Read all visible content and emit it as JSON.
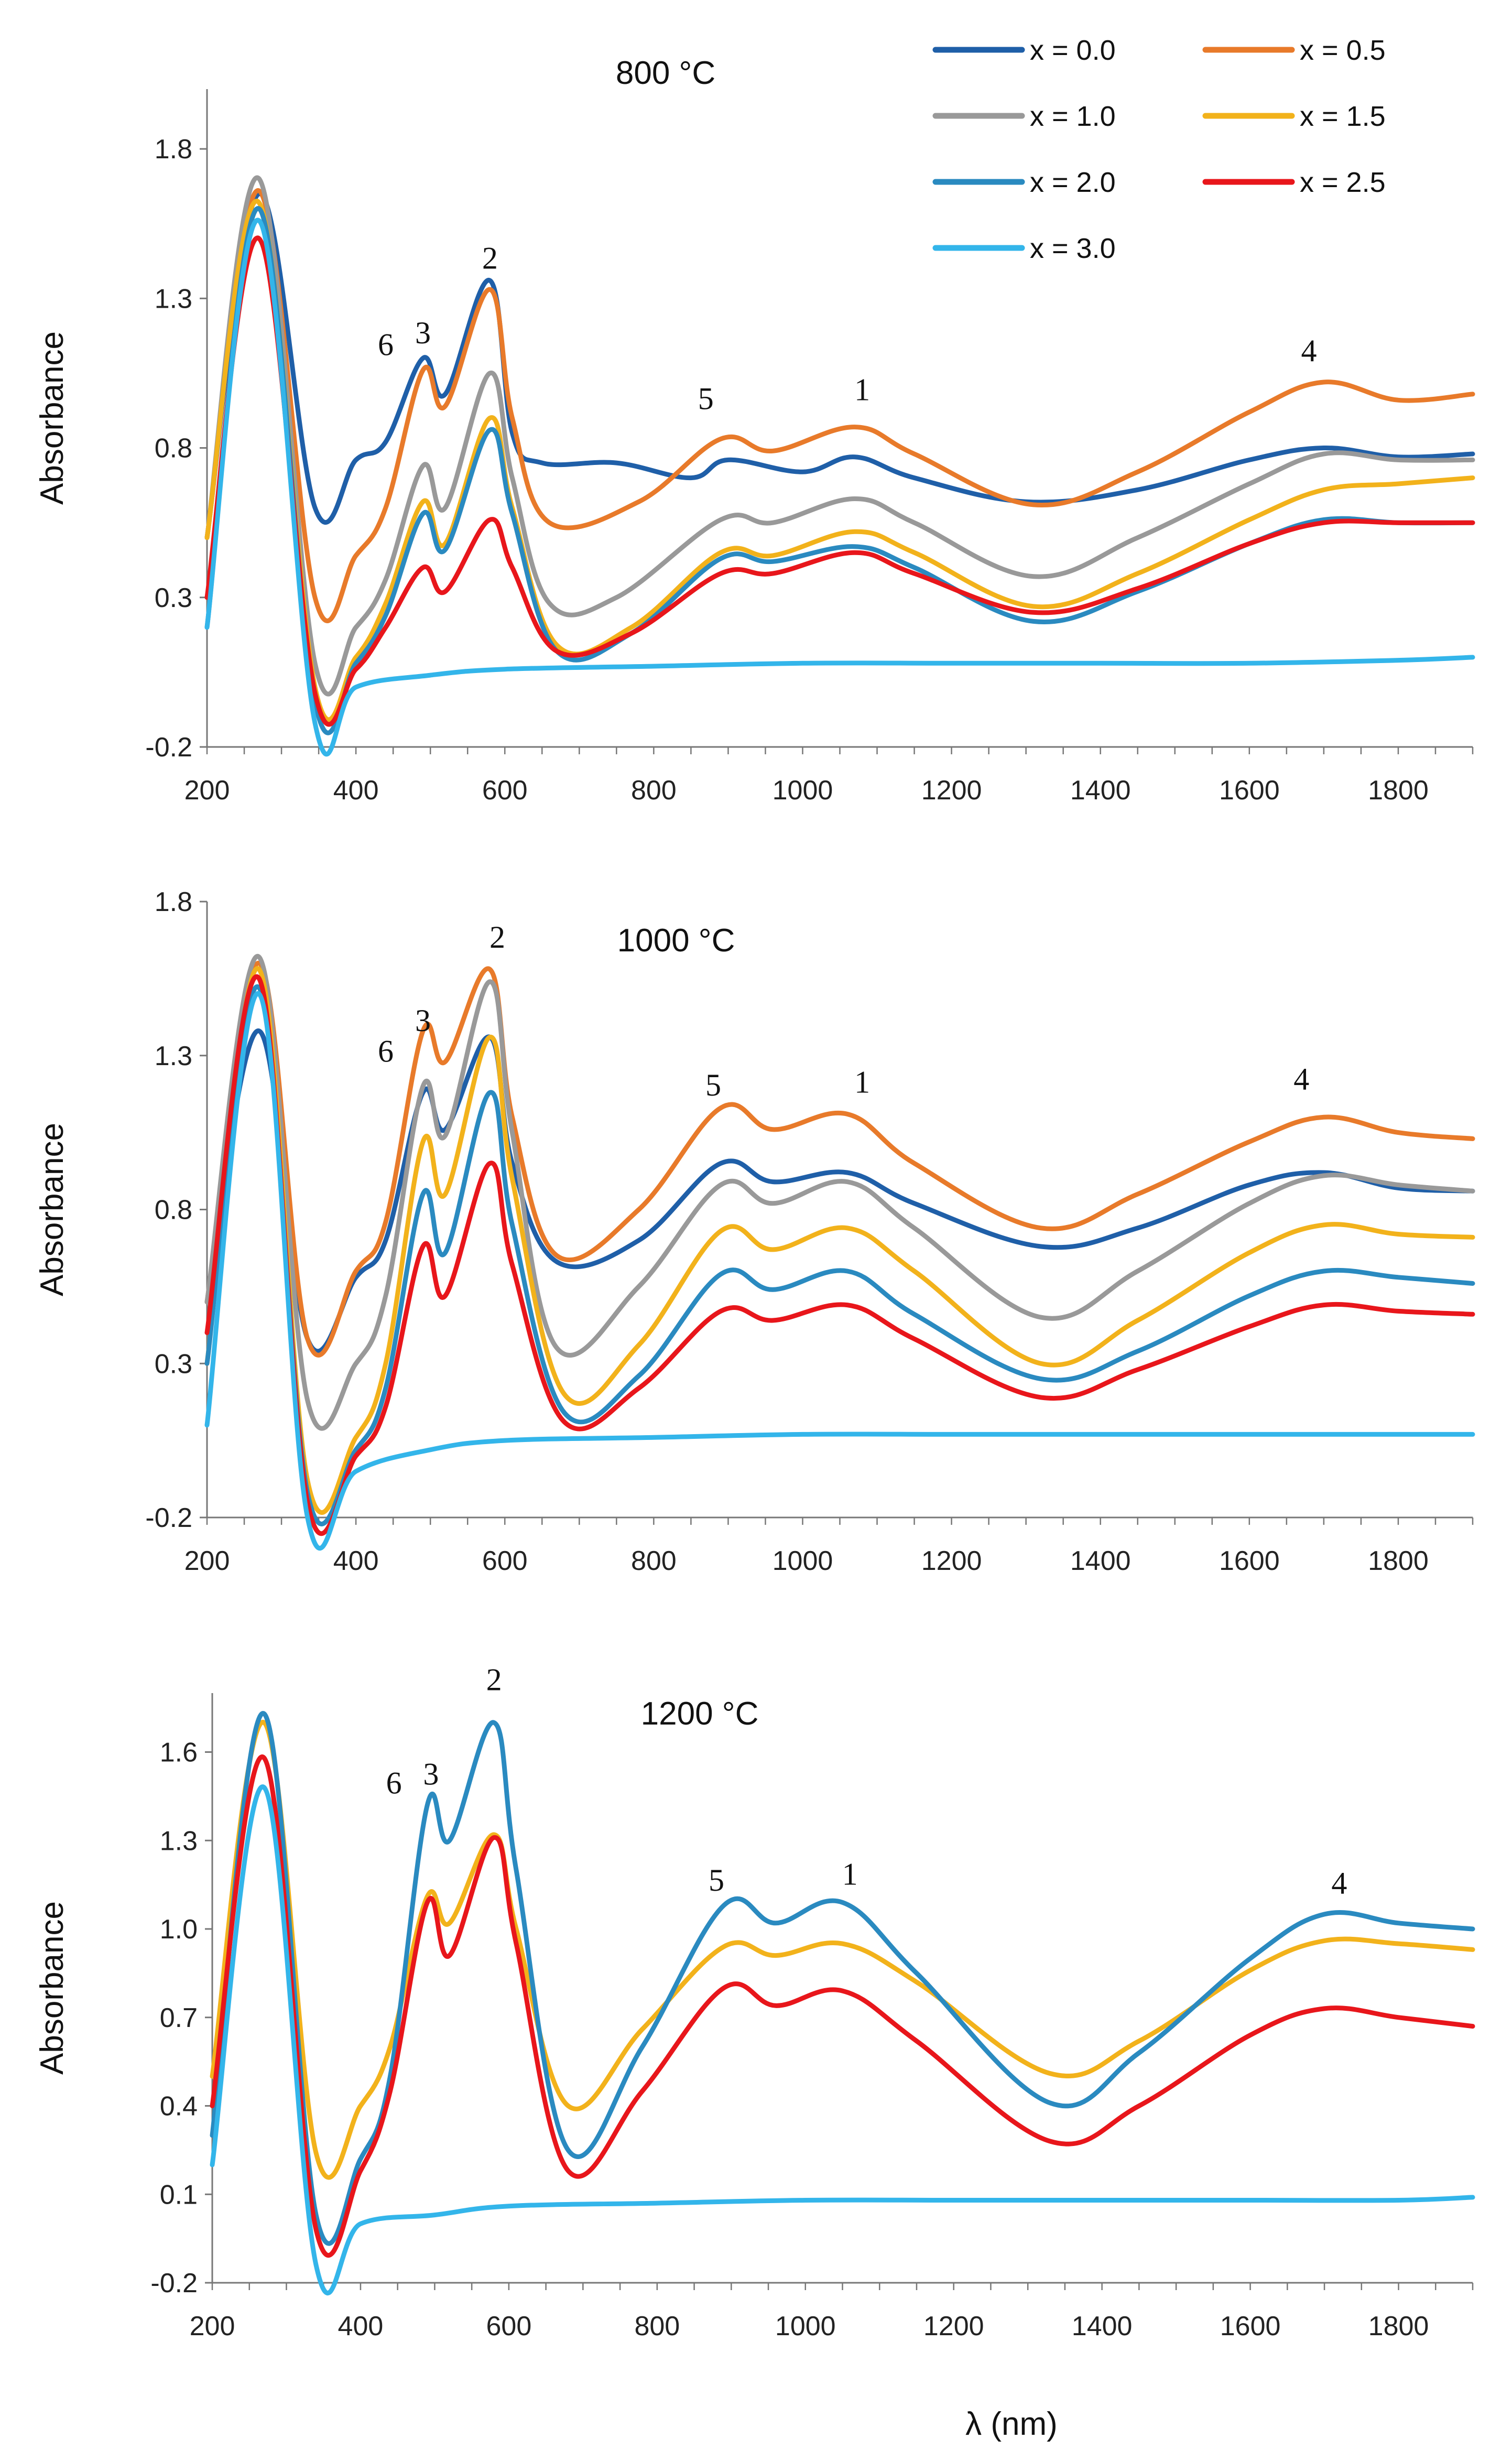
{
  "chart_data": [
    {
      "type": "line",
      "title": "800 °C",
      "xlabel": "",
      "ylabel": "Absorbance",
      "xlim": [
        200,
        1900
      ],
      "ylim": [
        -0.2,
        2.0
      ],
      "xticks": [
        200,
        400,
        600,
        800,
        1000,
        1200,
        1400,
        1600,
        1800
      ],
      "xtick_labels": [
        "200",
        "400",
        "600",
        "800",
        "1000",
        "1200",
        "1400",
        "1600",
        "1800"
      ],
      "yticks": [
        -0.2,
        0.3,
        0.8,
        1.3,
        1.8
      ],
      "ytick_labels": [
        "-0.2",
        "0.3",
        "0.8",
        "1.3",
        "1.8"
      ],
      "annotations": [
        {
          "text": "6",
          "x": 440,
          "y": 1.11
        },
        {
          "text": "3",
          "x": 490,
          "y": 1.15
        },
        {
          "text": "2",
          "x": 580,
          "y": 1.4
        },
        {
          "text": "5",
          "x": 870,
          "y": 0.93
        },
        {
          "text": "1",
          "x": 1080,
          "y": 0.96
        },
        {
          "text": "4",
          "x": 1680,
          "y": 1.09
        }
      ],
      "legend": {
        "placement": "top-right",
        "entries": [
          {
            "label": "x = 0.0",
            "color": "#1f5fa8"
          },
          {
            "label": "x = 0.5",
            "color": "#e87a2a"
          },
          {
            "label": "x = 1.0",
            "color": "#999999"
          },
          {
            "label": "x = 1.5",
            "color": "#f2b21b"
          },
          {
            "label": "x = 2.0",
            "color": "#2a8ac0"
          },
          {
            "label": "x = 2.5",
            "color": "#e8161b"
          },
          {
            "label": "x = 3.0",
            "color": "#33b5ea"
          }
        ]
      },
      "series": [
        {
          "name": "x = 0.0",
          "color": "#1f5fa8",
          "x": [
            200,
            270,
            345,
            400,
            440,
            490,
            520,
            580,
            610,
            650,
            750,
            850,
            900,
            1000,
            1070,
            1150,
            1300,
            1450,
            1600,
            1700,
            1800,
            1900
          ],
          "y": [
            0.5,
            1.65,
            0.6,
            0.76,
            0.82,
            1.1,
            0.98,
            1.36,
            0.85,
            0.75,
            0.75,
            0.7,
            0.76,
            0.72,
            0.77,
            0.7,
            0.62,
            0.66,
            0.76,
            0.8,
            0.77,
            0.78
          ]
        },
        {
          "name": "x = 0.5",
          "color": "#e87a2a",
          "x": [
            200,
            270,
            345,
            400,
            440,
            490,
            520,
            580,
            610,
            660,
            780,
            890,
            960,
            1070,
            1150,
            1310,
            1450,
            1600,
            1700,
            1800,
            1900
          ],
          "y": [
            0.5,
            1.66,
            0.3,
            0.44,
            0.6,
            1.06,
            0.94,
            1.33,
            0.9,
            0.55,
            0.62,
            0.83,
            0.79,
            0.87,
            0.78,
            0.61,
            0.72,
            0.92,
            1.02,
            0.96,
            0.98
          ]
        },
        {
          "name": "x = 1.0",
          "color": "#999999",
          "x": [
            200,
            270,
            345,
            400,
            440,
            490,
            520,
            580,
            610,
            660,
            750,
            890,
            960,
            1070,
            1150,
            1310,
            1450,
            1600,
            1700,
            1800,
            1900
          ],
          "y": [
            0.5,
            1.7,
            0.08,
            0.2,
            0.36,
            0.74,
            0.6,
            1.05,
            0.7,
            0.28,
            0.3,
            0.56,
            0.55,
            0.63,
            0.55,
            0.37,
            0.5,
            0.68,
            0.78,
            0.76,
            0.76
          ]
        },
        {
          "name": "x = 1.5",
          "color": "#f2b21b",
          "x": [
            200,
            270,
            345,
            400,
            440,
            490,
            520,
            580,
            610,
            670,
            770,
            890,
            960,
            1070,
            1150,
            1310,
            1450,
            1600,
            1700,
            1800,
            1900
          ],
          "y": [
            0.5,
            1.62,
            0.0,
            0.1,
            0.28,
            0.62,
            0.48,
            0.9,
            0.6,
            0.14,
            0.2,
            0.45,
            0.44,
            0.52,
            0.45,
            0.27,
            0.38,
            0.56,
            0.66,
            0.68,
            0.7
          ]
        },
        {
          "name": "x = 2.0",
          "color": "#2a8ac0",
          "x": [
            200,
            270,
            345,
            400,
            440,
            490,
            520,
            580,
            610,
            670,
            770,
            890,
            960,
            1070,
            1150,
            1310,
            1450,
            1600,
            1700,
            1800,
            1900
          ],
          "y": [
            0.2,
            1.6,
            -0.05,
            0.08,
            0.24,
            0.58,
            0.46,
            0.86,
            0.58,
            0.12,
            0.18,
            0.43,
            0.42,
            0.47,
            0.4,
            0.22,
            0.32,
            0.48,
            0.56,
            0.55,
            0.55
          ]
        },
        {
          "name": "x = 2.5",
          "color": "#e8161b",
          "x": [
            200,
            270,
            345,
            400,
            440,
            490,
            520,
            580,
            610,
            670,
            770,
            890,
            960,
            1070,
            1150,
            1310,
            1450,
            1600,
            1700,
            1800,
            1900
          ],
          "y": [
            0.3,
            1.5,
            -0.02,
            0.06,
            0.2,
            0.4,
            0.32,
            0.56,
            0.4,
            0.12,
            0.18,
            0.38,
            0.38,
            0.45,
            0.38,
            0.25,
            0.33,
            0.48,
            0.55,
            0.55,
            0.55
          ]
        },
        {
          "name": "x = 3.0",
          "color": "#33b5ea",
          "x": [
            200,
            270,
            345,
            400,
            500,
            600,
            800,
            1000,
            1200,
            1400,
            1600,
            1800,
            1900
          ],
          "y": [
            0.2,
            1.56,
            -0.12,
            0.0,
            0.04,
            0.06,
            0.07,
            0.08,
            0.08,
            0.08,
            0.08,
            0.09,
            0.1
          ]
        }
      ]
    },
    {
      "type": "line",
      "title": "1000 °C",
      "xlabel": "",
      "ylabel": "Absorbance",
      "xlim": [
        200,
        1900
      ],
      "ylim": [
        -0.2,
        1.8
      ],
      "xticks": [
        200,
        400,
        600,
        800,
        1000,
        1200,
        1400,
        1600,
        1800
      ],
      "xtick_labels": [
        "200",
        "400",
        "600",
        "800",
        "1000",
        "1200",
        "1400",
        "1600",
        "1800"
      ],
      "yticks": [
        -0.2,
        0.3,
        0.8,
        1.3,
        1.8
      ],
      "ytick_labels": [
        "-0.2",
        "0.3",
        "0.8",
        "1.3",
        "1.8"
      ],
      "annotations": [
        {
          "text": "6",
          "x": 440,
          "y": 1.28
        },
        {
          "text": "3",
          "x": 490,
          "y": 1.38
        },
        {
          "text": "2",
          "x": 590,
          "y": 1.65
        },
        {
          "text": "5",
          "x": 880,
          "y": 1.17
        },
        {
          "text": "1",
          "x": 1080,
          "y": 1.18
        },
        {
          "text": "4",
          "x": 1670,
          "y": 1.19
        }
      ],
      "series": [
        {
          "name": "x = 0.0",
          "color": "#1f5fa8",
          "x": [
            200,
            270,
            335,
            400,
            440,
            490,
            520,
            580,
            610,
            670,
            780,
            890,
            960,
            1060,
            1150,
            1320,
            1450,
            1600,
            1700,
            1800,
            1900
          ],
          "y": [
            0.5,
            1.38,
            0.38,
            0.58,
            0.7,
            1.18,
            1.06,
            1.36,
            0.95,
            0.63,
            0.7,
            0.95,
            0.89,
            0.92,
            0.82,
            0.68,
            0.74,
            0.88,
            0.92,
            0.87,
            0.86
          ]
        },
        {
          "name": "x = 0.5",
          "color": "#e87a2a",
          "x": [
            200,
            270,
            335,
            400,
            440,
            490,
            520,
            580,
            610,
            670,
            780,
            890,
            960,
            1060,
            1150,
            1320,
            1450,
            1600,
            1700,
            1800,
            1900
          ],
          "y": [
            0.5,
            1.6,
            0.38,
            0.6,
            0.76,
            1.38,
            1.28,
            1.58,
            1.1,
            0.65,
            0.8,
            1.13,
            1.06,
            1.11,
            0.95,
            0.74,
            0.85,
            1.02,
            1.1,
            1.05,
            1.03
          ]
        },
        {
          "name": "x = 1.0",
          "color": "#999999",
          "x": [
            200,
            270,
            335,
            400,
            440,
            490,
            520,
            580,
            610,
            670,
            780,
            890,
            960,
            1060,
            1150,
            1320,
            1450,
            1600,
            1700,
            1800,
            1900
          ],
          "y": [
            0.5,
            1.62,
            0.18,
            0.3,
            0.52,
            1.2,
            1.04,
            1.54,
            1.05,
            0.35,
            0.55,
            0.88,
            0.82,
            0.89,
            0.74,
            0.45,
            0.6,
            0.82,
            0.91,
            0.88,
            0.86
          ]
        },
        {
          "name": "x = 1.5",
          "color": "#f2b21b",
          "x": [
            200,
            270,
            335,
            400,
            440,
            490,
            520,
            580,
            610,
            680,
            780,
            890,
            960,
            1060,
            1150,
            1320,
            1450,
            1600,
            1700,
            1800,
            1900
          ],
          "y": [
            0.3,
            1.58,
            -0.08,
            0.06,
            0.3,
            1.02,
            0.85,
            1.36,
            0.9,
            0.2,
            0.36,
            0.73,
            0.67,
            0.74,
            0.6,
            0.3,
            0.44,
            0.66,
            0.75,
            0.72,
            0.71
          ]
        },
        {
          "name": "x = 2.0",
          "color": "#2a8ac0",
          "x": [
            200,
            270,
            335,
            400,
            440,
            490,
            520,
            580,
            610,
            680,
            780,
            890,
            960,
            1060,
            1150,
            1320,
            1450,
            1600,
            1700,
            1800,
            1900
          ],
          "y": [
            0.3,
            1.52,
            -0.12,
            0.02,
            0.22,
            0.85,
            0.66,
            1.18,
            0.75,
            0.14,
            0.26,
            0.59,
            0.54,
            0.6,
            0.46,
            0.25,
            0.34,
            0.52,
            0.6,
            0.58,
            0.56
          ]
        },
        {
          "name": "x = 2.5",
          "color": "#e8161b",
          "x": [
            200,
            270,
            335,
            400,
            440,
            490,
            520,
            580,
            610,
            680,
            780,
            890,
            960,
            1060,
            1150,
            1320,
            1450,
            1600,
            1700,
            1800,
            1900
          ],
          "y": [
            0.4,
            1.55,
            -0.15,
            0.0,
            0.16,
            0.68,
            0.52,
            0.95,
            0.62,
            0.11,
            0.22,
            0.47,
            0.44,
            0.49,
            0.38,
            0.19,
            0.28,
            0.42,
            0.49,
            0.47,
            0.46
          ]
        },
        {
          "name": "x = 3.0",
          "color": "#33b5ea",
          "x": [
            200,
            270,
            335,
            400,
            500,
            600,
            800,
            1000,
            1200,
            1400,
            1600,
            1800,
            1900
          ],
          "y": [
            0.1,
            1.5,
            -0.2,
            -0.05,
            0.02,
            0.05,
            0.06,
            0.07,
            0.07,
            0.07,
            0.07,
            0.07,
            0.07
          ]
        }
      ]
    },
    {
      "type": "line",
      "title": "1200 °C",
      "xlabel": "λ (nm)",
      "ylabel": "Absorbance",
      "xlim": [
        200,
        1900
      ],
      "ylim": [
        -0.2,
        1.8
      ],
      "xticks": [
        200,
        400,
        600,
        800,
        1000,
        1200,
        1400,
        1600,
        1800
      ],
      "xtick_labels": [
        "200",
        "400",
        "600",
        "800",
        "1000",
        "1200",
        "1400",
        "1600",
        "1800"
      ],
      "yticks": [
        -0.2,
        0.1,
        0.4,
        0.7,
        1.0,
        1.3,
        1.6
      ],
      "ytick_labels": [
        "-0.2",
        "0.1",
        "0.4",
        "0.7",
        "1.0",
        "1.3",
        "1.6"
      ],
      "annotations": [
        {
          "text": "6",
          "x": 445,
          "y": 1.46
        },
        {
          "text": "3",
          "x": 495,
          "y": 1.49
        },
        {
          "text": "2",
          "x": 580,
          "y": 1.81
        },
        {
          "text": "5",
          "x": 880,
          "y": 1.13
        },
        {
          "text": "1",
          "x": 1060,
          "y": 1.15
        },
        {
          "text": "4",
          "x": 1720,
          "y": 1.12
        }
      ],
      "series": [
        {
          "name": "x = 1.5",
          "color": "#f2b21b",
          "x": [
            200,
            270,
            340,
            400,
            440,
            490,
            520,
            580,
            610,
            680,
            780,
            890,
            960,
            1050,
            1150,
            1330,
            1450,
            1600,
            1700,
            1800,
            1900
          ],
          "y": [
            0.5,
            1.7,
            0.24,
            0.4,
            0.6,
            1.11,
            1.02,
            1.32,
            1.0,
            0.4,
            0.66,
            0.94,
            0.91,
            0.95,
            0.82,
            0.51,
            0.62,
            0.86,
            0.96,
            0.95,
            0.93
          ]
        },
        {
          "name": "x = 2.0",
          "color": "#2a8ac0",
          "x": [
            200,
            270,
            340,
            400,
            440,
            490,
            520,
            580,
            610,
            680,
            780,
            890,
            960,
            1050,
            1150,
            1330,
            1450,
            1600,
            1700,
            1800,
            1900
          ],
          "y": [
            0.3,
            1.73,
            0.03,
            0.22,
            0.5,
            1.42,
            1.3,
            1.7,
            1.2,
            0.25,
            0.6,
            1.08,
            1.02,
            1.09,
            0.85,
            0.41,
            0.58,
            0.9,
            1.05,
            1.02,
            1.0
          ]
        },
        {
          "name": "x = 2.5",
          "color": "#e8161b",
          "x": [
            200,
            270,
            340,
            400,
            440,
            490,
            520,
            580,
            610,
            680,
            780,
            890,
            960,
            1050,
            1150,
            1330,
            1450,
            1600,
            1700,
            1800,
            1900
          ],
          "y": [
            0.4,
            1.58,
            -0.02,
            0.18,
            0.45,
            1.09,
            0.91,
            1.31,
            0.95,
            0.18,
            0.45,
            0.8,
            0.74,
            0.79,
            0.62,
            0.28,
            0.4,
            0.64,
            0.73,
            0.7,
            0.67
          ]
        },
        {
          "name": "x = 3.0",
          "color": "#33b5ea",
          "x": [
            200,
            270,
            340,
            400,
            500,
            600,
            800,
            1000,
            1200,
            1400,
            1600,
            1800,
            1900
          ],
          "y": [
            0.2,
            1.48,
            -0.14,
            0.0,
            0.03,
            0.06,
            0.07,
            0.08,
            0.08,
            0.08,
            0.08,
            0.08,
            0.09
          ]
        }
      ]
    }
  ]
}
